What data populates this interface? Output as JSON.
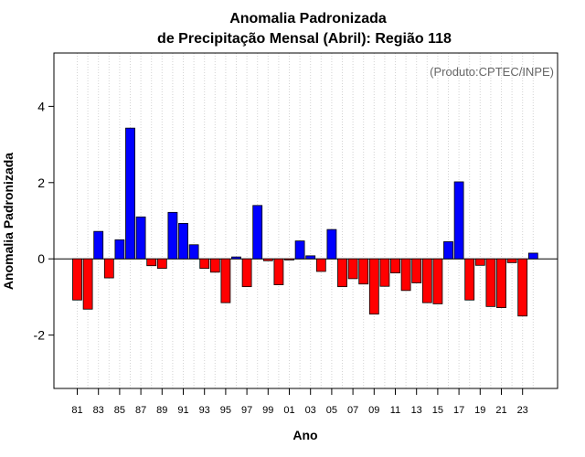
{
  "chart_data": {
    "type": "bar",
    "title_line1": "Anomalia Padronizada",
    "title_line2": "de Precipitação Mensal (Abril): Região 118",
    "xlabel": "Ano",
    "ylabel": "Anomalia Padronizada",
    "annotation": "(Produto:CPTEC/INPE)",
    "ylim": [
      -3.4,
      5.4
    ],
    "yticks": [
      -2,
      0,
      2,
      4
    ],
    "xtick_labels": [
      "81",
      "83",
      "85",
      "87",
      "89",
      "91",
      "93",
      "95",
      "97",
      "99",
      "01",
      "03",
      "05",
      "07",
      "09",
      "11",
      "13",
      "15",
      "17",
      "19",
      "21",
      "23"
    ],
    "categories": [
      "1981",
      "1982",
      "1983",
      "1984",
      "1985",
      "1986",
      "1987",
      "1988",
      "1989",
      "1990",
      "1991",
      "1992",
      "1993",
      "1994",
      "1995",
      "1996",
      "1997",
      "1998",
      "1999",
      "2000",
      "2001",
      "2002",
      "2003",
      "2004",
      "2005",
      "2006",
      "2007",
      "2008",
      "2009",
      "2010",
      "2011",
      "2012",
      "2013",
      "2014",
      "2015",
      "2016",
      "2017",
      "2018",
      "2019",
      "2020",
      "2021",
      "2022",
      "2023",
      "2024"
    ],
    "values": [
      -1.08,
      -1.32,
      0.72,
      -0.5,
      0.5,
      3.43,
      1.1,
      -0.18,
      -0.25,
      1.22,
      0.93,
      0.37,
      -0.25,
      -0.35,
      -1.15,
      0.05,
      -0.73,
      1.4,
      -0.05,
      -0.68,
      -0.03,
      0.47,
      0.08,
      -0.33,
      0.77,
      -0.73,
      -0.52,
      -0.66,
      -1.45,
      -0.72,
      -0.37,
      -0.83,
      -0.63,
      -1.15,
      -1.18,
      0.45,
      2.02,
      -1.08,
      -0.17,
      -1.25,
      -1.28,
      -0.1,
      -1.5,
      0.15
    ],
    "positive_color": "#0000ff",
    "negative_color": "#ff0000",
    "grid": "vertical dotted"
  }
}
